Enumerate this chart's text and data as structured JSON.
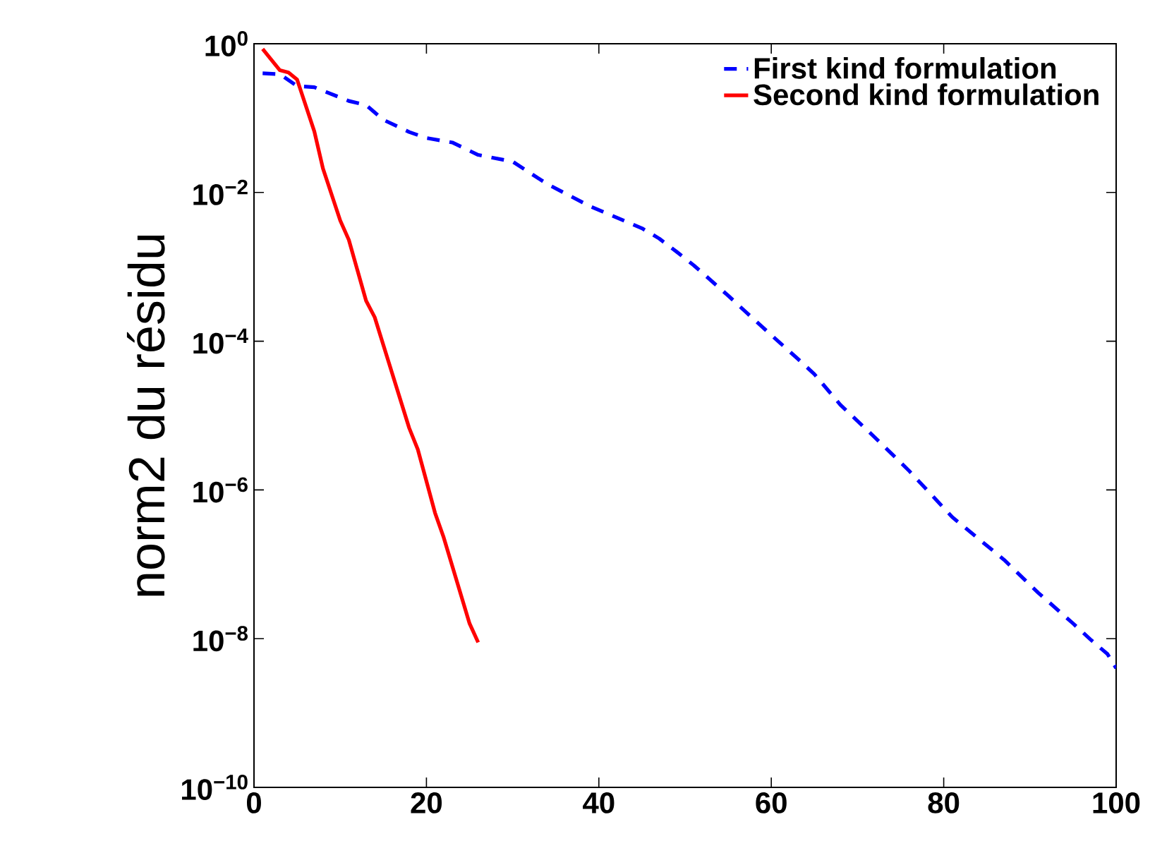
{
  "chart_data": {
    "type": "line",
    "ylabel": "norm2 du résidu",
    "log": "y",
    "legend": "top right",
    "grid": false,
    "xlim": [
      0,
      100
    ],
    "xticks": [
      0,
      20,
      40,
      60,
      80,
      100
    ],
    "ylim": [
      1e-10,
      1
    ],
    "yticks": [
      {
        "value": 1e-10,
        "label": "10$^{−10}$"
      },
      {
        "value": 1e-08,
        "label": "10$^{−8}$"
      },
      {
        "value": 1e-06,
        "label": "10$^{−6}$"
      },
      {
        "value": 0.0001,
        "label": "10$^{−4}$"
      },
      {
        "value": 0.01,
        "label": "10$^{−2}$"
      },
      {
        "value": 1,
        "label": "10$^{0}$"
      }
    ],
    "series": [
      {
        "name": "First kind formulation",
        "color": "#0000ff",
        "line_style": "dashed",
        "x": [
          1,
          3,
          5,
          7,
          11,
          13,
          15,
          18,
          20,
          23,
          26,
          30,
          34,
          39,
          45,
          47,
          49,
          51,
          55,
          57,
          61,
          63,
          65,
          68,
          72,
          76,
          81,
          87,
          91,
          95,
          97,
          99,
          100
        ],
        "values": [
          0.4,
          0.39,
          0.27,
          0.26,
          0.17,
          0.15,
          0.095,
          0.065,
          0.054,
          0.047,
          0.032,
          0.026,
          0.013,
          0.0065,
          0.0033,
          0.0024,
          0.0016,
          0.00105,
          0.00041,
          0.00025,
          9.5e-05,
          5.9e-05,
          3.6e-05,
          1.4e-05,
          5.1e-06,
          1.8e-06,
          4.3e-07,
          1.15e-07,
          4.1e-08,
          1.6e-08,
          9.8e-09,
          6.2e-09,
          4e-09
        ]
      },
      {
        "name": "Second kind formulation",
        "color": "#ff0000",
        "line_style": "solid",
        "x": [
          1,
          3,
          4,
          5,
          7,
          8,
          10,
          11,
          13,
          14,
          18,
          19,
          21,
          22,
          25,
          26
        ],
        "values": [
          0.85,
          0.44,
          0.41,
          0.33,
          0.066,
          0.021,
          0.0042,
          0.0023,
          0.00035,
          0.00021,
          6.8e-06,
          3.5e-06,
          4.9e-07,
          2.3e-07,
          1.6e-08,
          8.9e-09
        ]
      }
    ]
  }
}
